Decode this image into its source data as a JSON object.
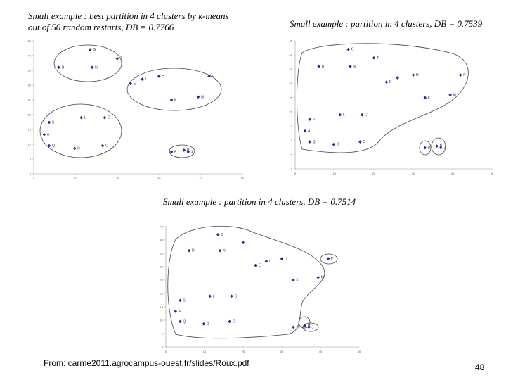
{
  "chart_data": [
    {
      "type": "scatter",
      "title": [
        "Small example : best partition in 4 clusters by k-means",
        "out of 50 random restarts, DB = 0.7766"
      ],
      "labels": [
        "G",
        "T",
        "D",
        "N",
        "I",
        "H",
        "E",
        "P",
        "K",
        "M",
        "L",
        "C",
        "S",
        "A",
        "Q",
        "D",
        "O",
        "B",
        "R",
        "J"
      ],
      "x": [
        13.5,
        20,
        6,
        14,
        26,
        30,
        23.2,
        42,
        33,
        39.4,
        11.4,
        17,
        3.7,
        2.5,
        3.7,
        9.8,
        16.5,
        33,
        36,
        37
      ],
      "y": [
        42,
        39,
        36,
        36,
        32,
        33,
        30.5,
        33,
        25,
        26,
        19,
        19,
        17.4,
        13.3,
        9.5,
        8.6,
        9.5,
        7.4,
        8,
        7.4
      ],
      "color": "#1f2f8f",
      "xlim": [
        0,
        50
      ],
      "ylim": [
        0,
        45
      ],
      "xticks": [
        0,
        10,
        20,
        30,
        40,
        50
      ],
      "yticks": [
        0,
        5,
        10,
        15,
        20,
        25,
        30,
        35,
        40,
        45
      ]
    },
    {
      "type": "scatter",
      "title": [
        "Small example : partition in 4 clusters, DB = 0.7539"
      ],
      "labels": [
        "G",
        "T",
        "D",
        "N",
        "I",
        "H",
        "E",
        "P",
        "K",
        "M",
        "L",
        "C",
        "S",
        "A",
        "Q",
        "D",
        "O",
        "B",
        "R",
        "J"
      ],
      "x": [
        13.5,
        20,
        6,
        14,
        26,
        30,
        23.2,
        42,
        33,
        39.4,
        11.4,
        17,
        3.7,
        2.5,
        3.7,
        9.8,
        16.5,
        33,
        36,
        37
      ],
      "y": [
        42,
        39,
        36,
        36,
        32,
        33,
        30.5,
        33,
        25,
        26,
        19,
        19,
        17.4,
        13.3,
        9.5,
        8.6,
        9.5,
        7.4,
        8,
        7.4
      ],
      "color": "#1f2f8f",
      "xlim": [
        0,
        50
      ],
      "ylim": [
        0,
        45
      ],
      "xticks": [
        0,
        10,
        20,
        30,
        40,
        50
      ],
      "yticks": [
        0,
        5,
        10,
        15,
        20,
        25,
        30,
        35,
        40,
        45
      ]
    },
    {
      "type": "scatter",
      "title": [
        "Small example : partition in 4 clusters, DB = 0.7514"
      ],
      "labels": [
        "G",
        "T",
        "D",
        "N",
        "I",
        "H",
        "E",
        "P",
        "K",
        "M",
        "L",
        "C",
        "S",
        "A",
        "Q",
        "D",
        "O",
        "B",
        "R",
        "J"
      ],
      "x": [
        13.5,
        20,
        6,
        14,
        26,
        30,
        23.2,
        42,
        33,
        39.4,
        11.4,
        17,
        3.7,
        2.5,
        3.7,
        9.8,
        16.5,
        33,
        36,
        37
      ],
      "y": [
        42,
        39,
        36,
        36,
        32,
        33,
        30.5,
        33,
        25,
        26,
        19,
        19,
        17.4,
        13.3,
        9.5,
        8.6,
        9.5,
        7.4,
        8,
        7.4
      ],
      "color": "#1f2f8f",
      "xlim": [
        0,
        50
      ],
      "ylim": [
        0,
        45
      ],
      "xticks": [
        0,
        10,
        20,
        30,
        40,
        50
      ],
      "yticks": [
        0,
        5,
        10,
        15,
        20,
        25,
        30,
        35,
        40,
        45
      ]
    }
  ],
  "footer": {
    "source": "From: carme2011.agrocampus-ouest.fr/slides/Roux.pdf",
    "page": "48"
  }
}
